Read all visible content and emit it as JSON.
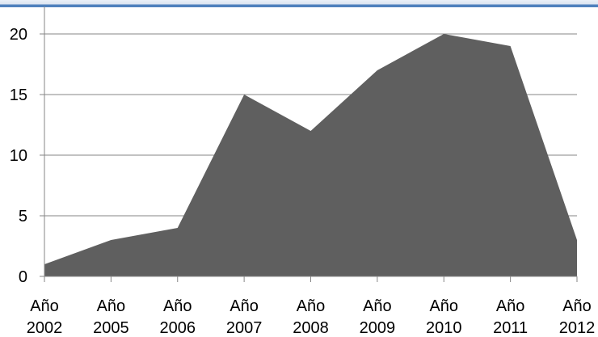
{
  "chart_data": {
    "type": "area",
    "title": "",
    "xlabel": "",
    "ylabel": "",
    "categories": [
      [
        "Año",
        "2002"
      ],
      [
        "Año",
        "2005"
      ],
      [
        "Año",
        "2006"
      ],
      [
        "Año",
        "2007"
      ],
      [
        "Año",
        "2008"
      ],
      [
        "Año",
        "2009"
      ],
      [
        "Año",
        "2010"
      ],
      [
        "Año",
        "2011"
      ],
      [
        "Año",
        "2012"
      ]
    ],
    "values": [
      1,
      3,
      4,
      15,
      12,
      17,
      20,
      19,
      3
    ],
    "ylim": [
      0,
      20
    ],
    "yticks": [
      0,
      5,
      10,
      15,
      20
    ],
    "grid": "horizontal",
    "legend": "none",
    "colors": {
      "area": "#5f5f5f",
      "grid": "#868686",
      "axis": "#868686",
      "top_bar": "#4f81bd"
    }
  }
}
